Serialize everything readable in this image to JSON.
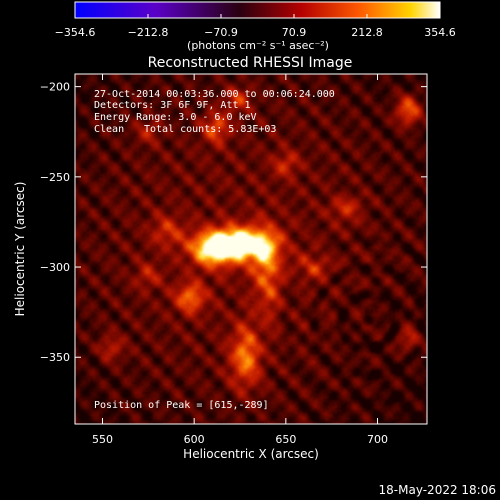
{
  "chart_data": {
    "type": "heatmap",
    "title": "Reconstructed RHESSI Image",
    "xlabel": "Heliocentric X (arcsec)",
    "ylabel": "Heliocentric Y (arcsec)",
    "xlim": [
      535,
      727
    ],
    "ylim": [
      -387,
      -193
    ],
    "x_ticks": [
      550,
      600,
      650,
      700
    ],
    "y_ticks": [
      -200,
      -250,
      -300,
      -350
    ],
    "colorbar": {
      "label": "(photons cm⁻² s⁻¹ asec⁻²)",
      "ticks": [
        -354.6,
        -212.8,
        -70.9,
        70.9,
        212.8,
        354.6
      ],
      "tick_labels": [
        "−354.6",
        "−212.8",
        "−70.9",
        "70.9",
        "212.8",
        "354.6"
      ],
      "range": [
        -354.6,
        354.6
      ],
      "colors": [
        "#0000ff",
        "#5a00c8",
        "#2a0010",
        "#b40000",
        "#ff5a00",
        "#ffd400",
        "#ffffff"
      ]
    },
    "annotations": {
      "time_range": "27-Oct-2014 00:03:36.000 to 00:06:24.000",
      "detectors": "Detectors: 3F 6F 9F, Att 1",
      "energy": "Energy Range: 3.0 - 6.0 keV",
      "method": "Clean",
      "total_counts": "Total counts: 5.83E+03",
      "peak": "Position of Peak = [615,-289]"
    },
    "peak": {
      "x": 615,
      "y": -289
    },
    "sources": [
      {
        "x": 620,
        "y": -287,
        "sx": 13,
        "sy": 6,
        "amp": 1.0
      },
      {
        "x": 610,
        "y": -293,
        "sx": 8,
        "sy": 6,
        "amp": 0.45
      },
      {
        "x": 635,
        "y": -290,
        "sx": 10,
        "sy": 9,
        "amp": 0.3
      },
      {
        "x": 628,
        "y": -350,
        "sx": 6,
        "sy": 12,
        "amp": 0.55
      },
      {
        "x": 640,
        "y": -305,
        "sx": 5,
        "sy": 16,
        "amp": 0.4
      },
      {
        "x": 598,
        "y": -317,
        "sx": 6,
        "sy": 6,
        "amp": 0.5
      },
      {
        "x": 575,
        "y": -305,
        "sx": 5,
        "sy": 5,
        "amp": 0.25
      },
      {
        "x": 585,
        "y": -280,
        "sx": 6,
        "sy": 6,
        "amp": 0.3
      },
      {
        "x": 665,
        "y": -300,
        "sx": 6,
        "sy": 5,
        "amp": 0.3
      },
      {
        "x": 612,
        "y": -223,
        "sx": 5,
        "sy": 6,
        "amp": 0.45
      },
      {
        "x": 624,
        "y": -207,
        "sx": 5,
        "sy": 5,
        "amp": 0.35
      },
      {
        "x": 575,
        "y": -225,
        "sx": 5,
        "sy": 5,
        "amp": 0.25
      },
      {
        "x": 717,
        "y": -213,
        "sx": 5,
        "sy": 6,
        "amp": 0.55
      },
      {
        "x": 650,
        "y": -243,
        "sx": 5,
        "sy": 5,
        "amp": 0.3
      },
      {
        "x": 683,
        "y": -268,
        "sx": 6,
        "sy": 5,
        "amp": 0.3
      },
      {
        "x": 718,
        "y": -340,
        "sx": 5,
        "sy": 5,
        "amp": 0.3
      },
      {
        "x": 555,
        "y": -345,
        "sx": 5,
        "sy": 5,
        "amp": 0.3
      }
    ]
  },
  "timestamp": "18-May-2022 18:06"
}
